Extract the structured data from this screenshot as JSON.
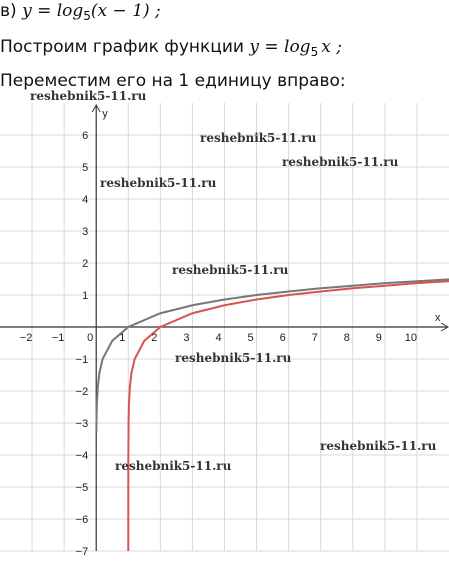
{
  "header": {
    "line1": {
      "prefix": "в)",
      "formula": "y = log",
      "base": "5",
      "rest": "(x − 1) ;"
    },
    "line2": {
      "text": "Построим график функции",
      "formula": "y = log",
      "base": "5",
      "rest": "x ;"
    },
    "line3": {
      "text": "Переместим его на 1 единицу вправо:"
    }
  },
  "watermarks": [
    "reshebnik5-11.ru",
    "reshebnik5-11.ru",
    "reshebnik5-11.ru",
    "reshebnik5-11.ru",
    "reshebnik5-11.ru",
    "reshebnik5-11.ru",
    "reshebnik5-11.ru",
    "reshebnik5-11.ru"
  ],
  "chart_data": {
    "type": "line",
    "x_label": "x",
    "y_label": "y",
    "xlim": [
      -3,
      11
    ],
    "ylim": [
      -7,
      7
    ],
    "xticks": [
      {
        "value": -2,
        "label": "−2"
      },
      {
        "value": -1,
        "label": "−1"
      },
      0,
      1,
      2,
      3,
      4,
      5,
      6,
      7,
      8,
      9,
      10
    ],
    "yticks": [
      {
        "value": -7,
        "label": "−7"
      },
      {
        "value": -6,
        "label": "−6"
      },
      {
        "value": -5,
        "label": "−5"
      },
      {
        "value": -4,
        "label": "−4"
      },
      {
        "value": -3,
        "label": "−3"
      },
      {
        "value": -2,
        "label": "−2"
      },
      {
        "value": -1,
        "label": "−1"
      },
      1,
      2,
      3,
      4,
      5,
      6
    ],
    "grid": true,
    "series": [
      {
        "color": "#777777",
        "x": [
          0.005,
          0.01,
          0.02,
          0.05,
          0.1,
          0.2,
          0.5,
          1,
          2,
          3,
          4,
          5,
          6,
          7,
          8,
          9,
          10,
          11
        ],
        "values": [
          -3.29,
          -2.86,
          -2.43,
          -1.86,
          -1.43,
          -1,
          -0.43,
          0,
          0.43,
          0.68,
          0.86,
          1,
          1.11,
          1.21,
          1.29,
          1.37,
          1.43,
          1.49
        ]
      },
      {
        "color": "#d9534f",
        "x": [
          1.0000128,
          1.0001,
          1.001,
          1.01,
          1.02,
          1.05,
          1.1,
          1.2,
          1.5,
          2,
          3,
          4,
          5,
          6,
          7,
          8,
          9,
          10,
          11
        ],
        "values": [
          -7,
          -5.72,
          -4.29,
          -2.86,
          -2.43,
          -1.86,
          -1.43,
          -1,
          -0.43,
          0,
          0.43,
          0.68,
          0.86,
          1,
          1.11,
          1.21,
          1.29,
          1.37,
          1.43
        ]
      }
    ]
  }
}
